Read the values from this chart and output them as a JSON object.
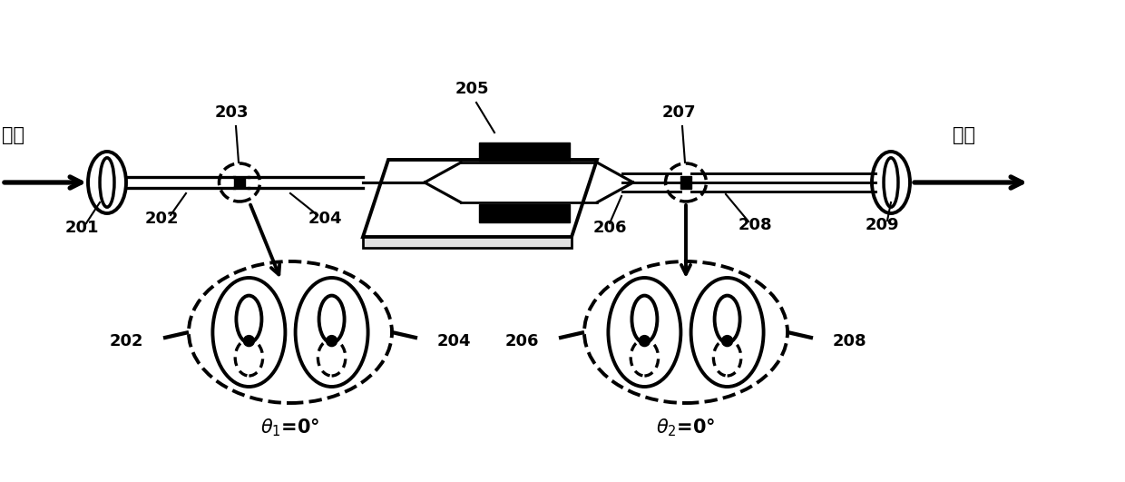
{
  "bg_color": "#ffffff",
  "line_color": "#000000",
  "fig_width": 12.4,
  "fig_height": 5.31,
  "lw": 2.8,
  "labels": {
    "input_text": "输入",
    "output_text": "输出",
    "n201": "201",
    "n202": "202",
    "n203": "203",
    "n204": "204",
    "n205": "205",
    "n206": "206",
    "n207": "207",
    "n208": "208",
    "n209": "209",
    "theta1": "$\\theta_1$=0°",
    "theta2": "$\\theta_2$=0°"
  }
}
